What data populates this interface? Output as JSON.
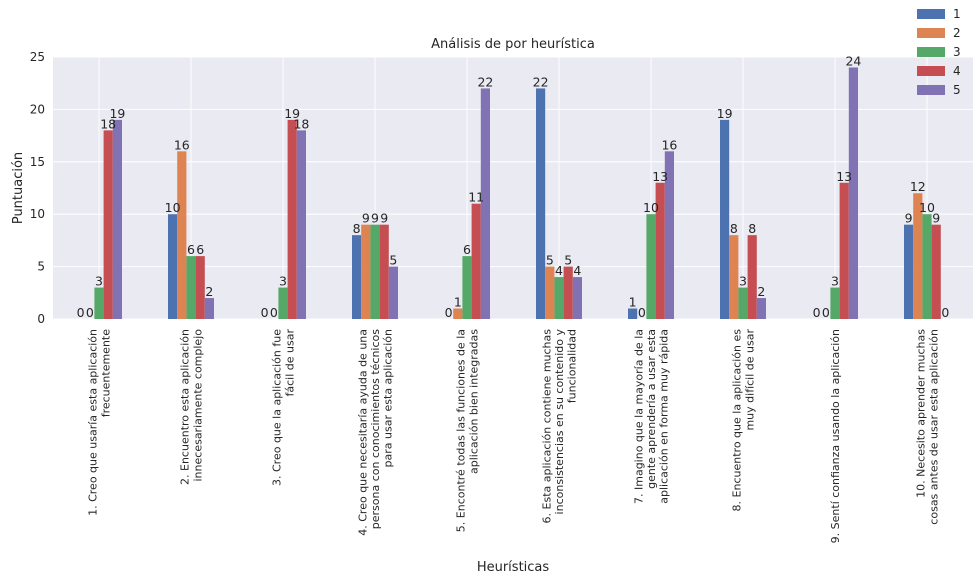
{
  "chart_data": {
    "type": "bar",
    "title": "Análisis de por heurística",
    "xlabel": "Heurísticas",
    "ylabel": "Puntuación",
    "ylim": [
      0,
      25
    ],
    "yticks": [
      0,
      5,
      10,
      15,
      20,
      25
    ],
    "grid": true,
    "legend_position": "top-right",
    "categories": [
      [
        "1. Creo que usaría esta aplicación",
        "frecuentemente"
      ],
      [
        "2. Encuentro esta aplicación",
        "innecesariamente complejo"
      ],
      [
        "3. Creo que la aplicación fue",
        "fácil de usar"
      ],
      [
        "4. Creo que necesitaría ayuda de una",
        "persona con conocimientos técnicos",
        "para usar esta aplicación"
      ],
      [
        "5. Encontré todas las funciones de la",
        "aplicación bien integradas"
      ],
      [
        "6. Esta aplicación contiene muchas",
        "inconsistencias en su contenido y",
        "funcionalidad"
      ],
      [
        "7. Imagino que la mayoría de la",
        "gente aprendería a usar esta",
        "aplicación en forma muy rápida"
      ],
      [
        "8. Encuentro que la aplicación es",
        "muy difícil de usar"
      ],
      [
        "9. Sentí confianza usando la aplicación"
      ],
      [
        "10. Necesito aprender muchas",
        "cosas antes de usar esta aplicación"
      ]
    ],
    "series": [
      {
        "name": "1",
        "color": "#4C72B0",
        "values": [
          0,
          10,
          0,
          8,
          0,
          22,
          1,
          19,
          0,
          9
        ]
      },
      {
        "name": "2",
        "color": "#DD8452",
        "values": [
          0,
          16,
          0,
          9,
          1,
          5,
          0,
          8,
          0,
          12
        ]
      },
      {
        "name": "3",
        "color": "#55A868",
        "values": [
          3,
          6,
          3,
          9,
          6,
          4,
          10,
          3,
          3,
          10
        ]
      },
      {
        "name": "4",
        "color": "#C44E52",
        "values": [
          18,
          6,
          19,
          9,
          11,
          5,
          13,
          8,
          13,
          9
        ]
      },
      {
        "name": "5",
        "color": "#8172B3",
        "values": [
          19,
          2,
          18,
          5,
          22,
          4,
          16,
          2,
          24,
          0
        ]
      }
    ]
  }
}
